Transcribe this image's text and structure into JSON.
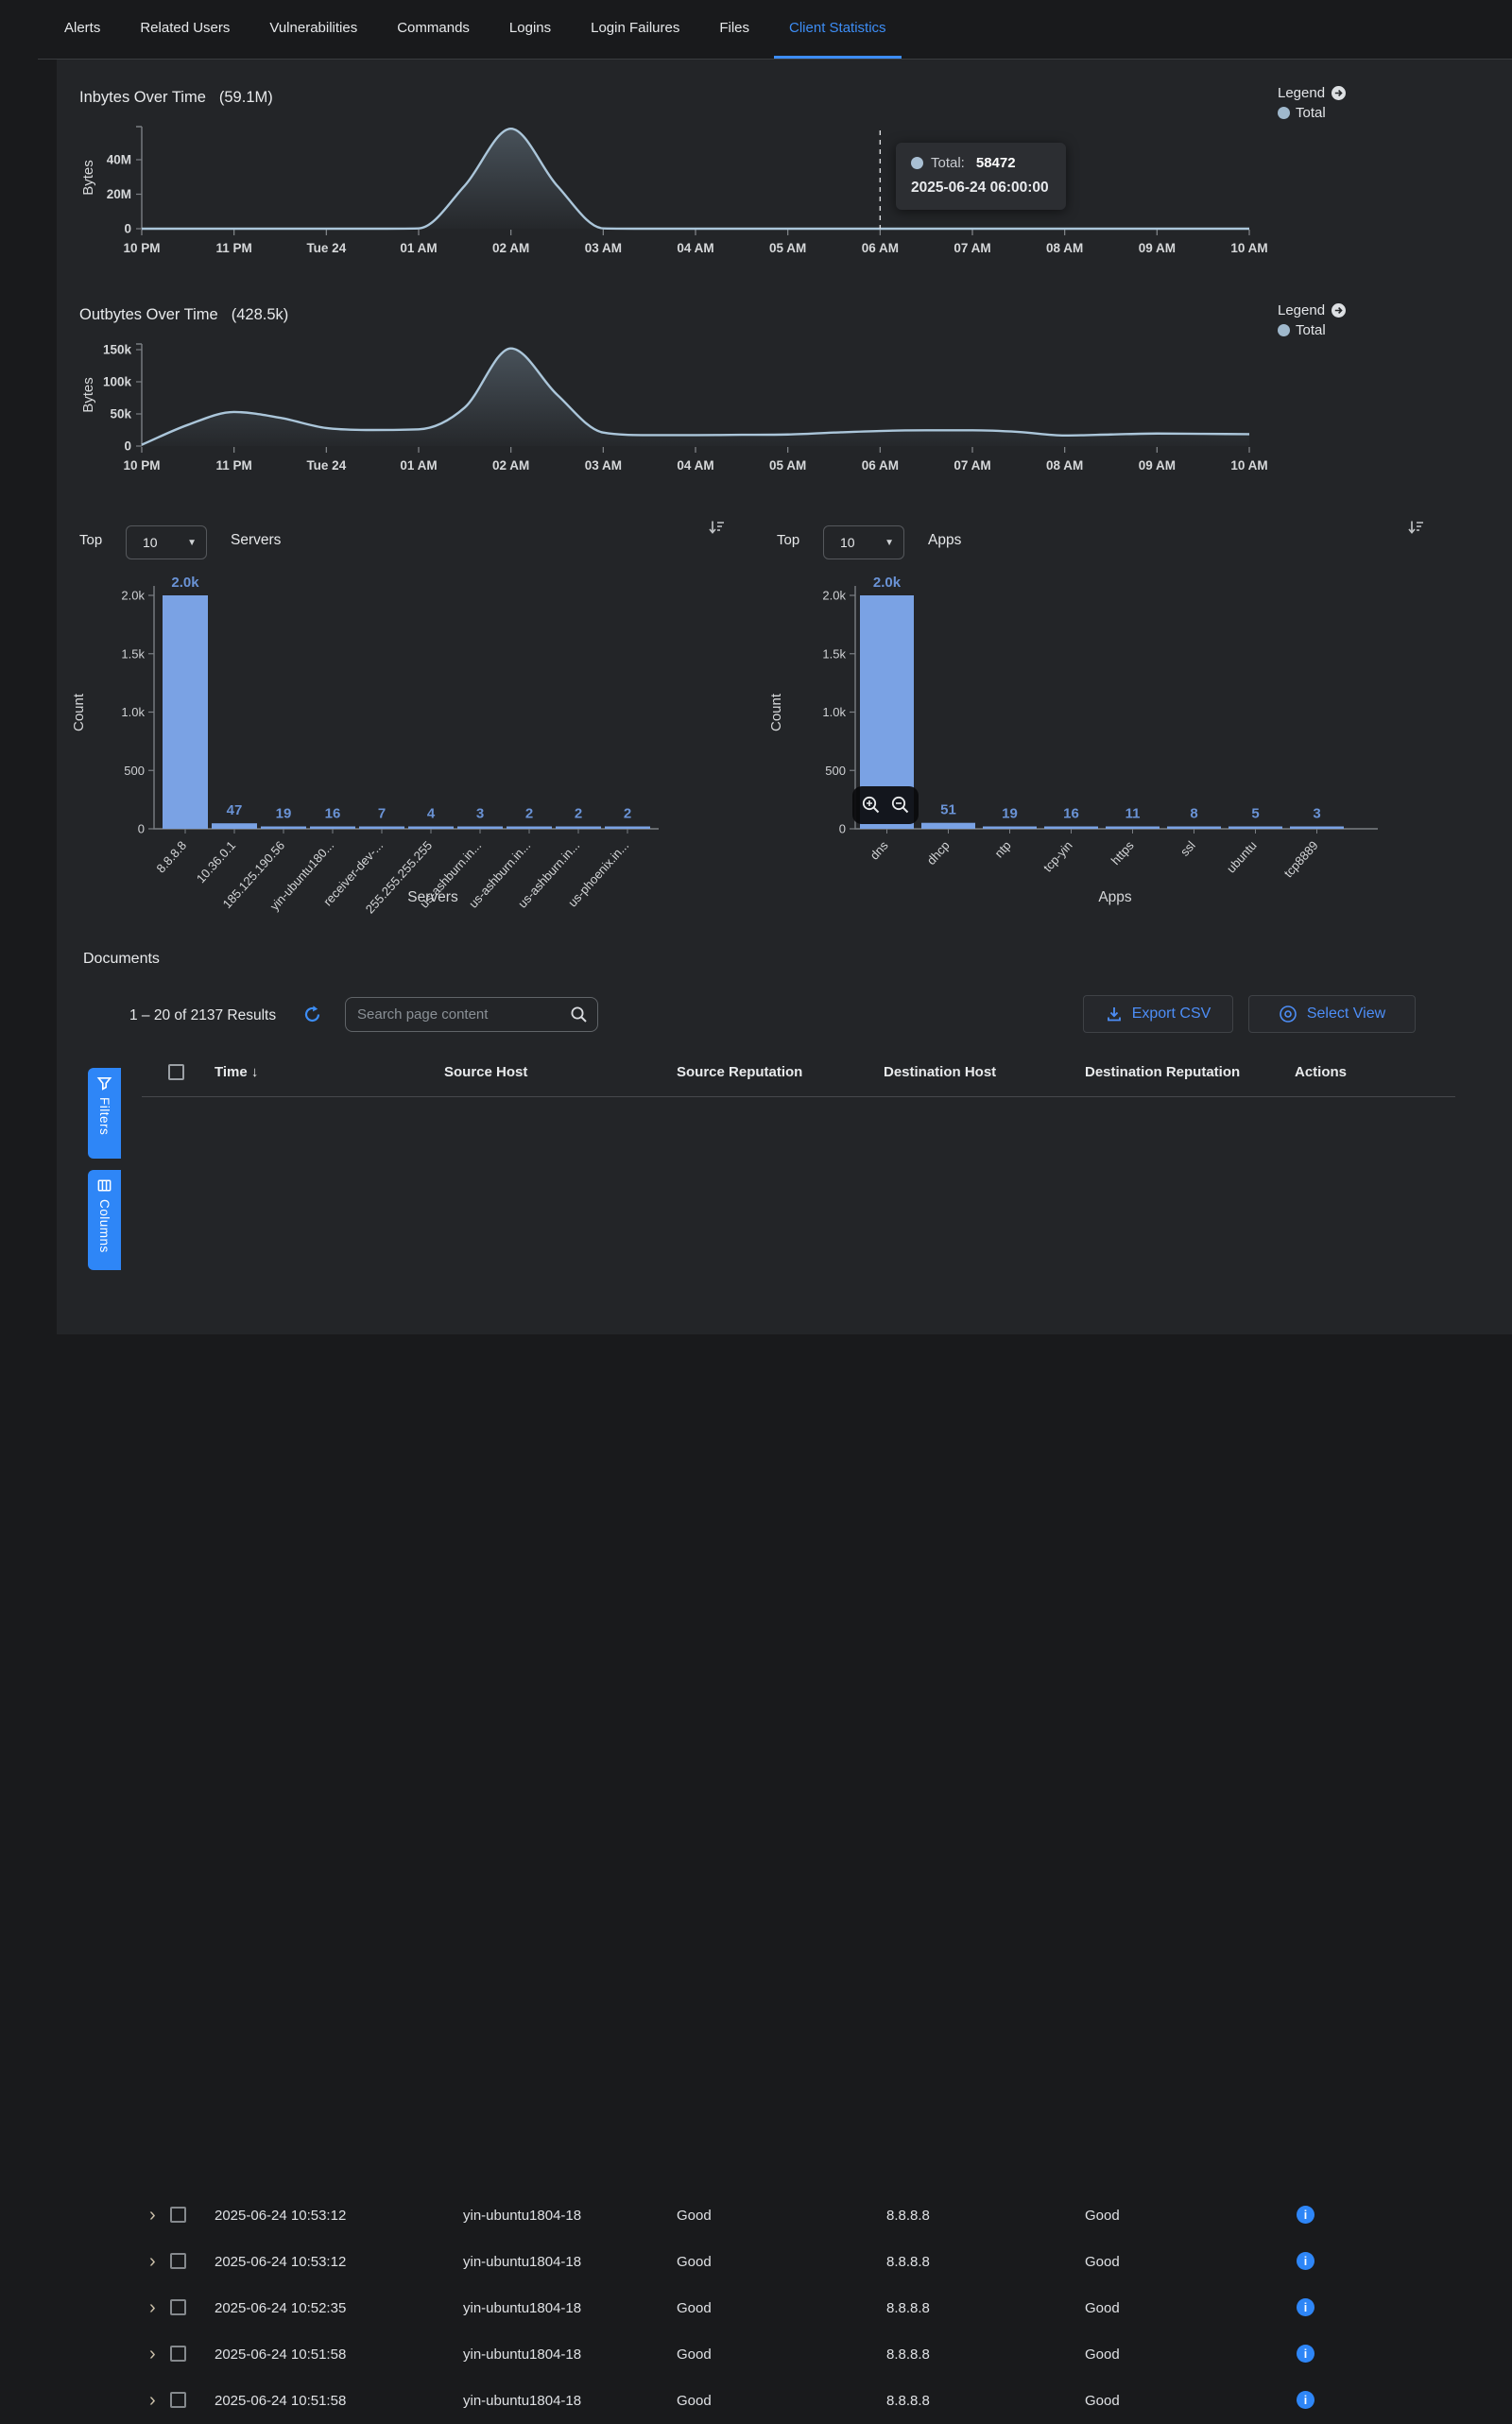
{
  "tabs": {
    "items": [
      {
        "label": "Alerts",
        "active": false
      },
      {
        "label": "Related Users",
        "active": false
      },
      {
        "label": "Vulnerabilities",
        "active": false
      },
      {
        "label": "Commands",
        "active": false
      },
      {
        "label": "Logins",
        "active": false
      },
      {
        "label": "Login Failures",
        "active": false
      },
      {
        "label": "Files",
        "active": false
      },
      {
        "label": "Client Statistics",
        "active": true
      }
    ]
  },
  "legend": {
    "label": "Legend",
    "series": "Total"
  },
  "chart_data": [
    {
      "id": "inbytes",
      "type": "area",
      "title": "Inbytes Over Time",
      "total": "(59.1M)",
      "ylabel": "Bytes",
      "unit": "M",
      "yticks": [
        {
          "v": 0,
          "l": "0"
        },
        {
          "v": 20,
          "l": "20M"
        },
        {
          "v": 40,
          "l": "40M"
        }
      ],
      "x_ticks": [
        "10 PM",
        "11 PM",
        "Tue 24",
        "01 AM",
        "02 AM",
        "03 AM",
        "04 AM",
        "05 AM",
        "06 AM",
        "07 AM",
        "08 AM",
        "09 AM",
        "10 AM"
      ],
      "step_minutes": 30,
      "values": [
        0,
        0,
        0,
        0,
        0,
        0,
        0.2,
        25,
        58,
        25,
        0.2,
        0,
        0,
        0,
        0,
        0,
        0,
        0,
        0,
        0,
        0,
        0,
        0,
        0,
        0
      ],
      "legend": "Total",
      "marker": {
        "index": 16,
        "series": "Total",
        "value": "58472",
        "time": "2025-06-24 06:00:00"
      }
    },
    {
      "id": "outbytes",
      "type": "area",
      "title": "Outbytes Over Time",
      "total": "(428.5k)",
      "ylabel": "Bytes",
      "unit": "k",
      "yticks": [
        {
          "v": 0,
          "l": "0"
        },
        {
          "v": 50,
          "l": "50k"
        },
        {
          "v": 100,
          "l": "100k"
        },
        {
          "v": 150,
          "l": "150k"
        }
      ],
      "x_ticks": [
        "10 PM",
        "11 PM",
        "Tue 24",
        "01 AM",
        "02 AM",
        "03 AM",
        "04 AM",
        "05 AM",
        "06 AM",
        "07 AM",
        "08 AM",
        "09 AM",
        "10 AM"
      ],
      "step_minutes": 30,
      "values": [
        2,
        33,
        53,
        44,
        28,
        25,
        26,
        60,
        152,
        80,
        21,
        17,
        17,
        17.5,
        18,
        21,
        23.5,
        24.5,
        24.5,
        22,
        16.5,
        18,
        19.5,
        19,
        18.5
      ],
      "legend": "Total"
    },
    {
      "id": "servers",
      "type": "bar",
      "header_prefix": "Top",
      "top_n": "10",
      "header_title": "Servers",
      "xlabel": "Servers",
      "ylabel": "Count",
      "ylim": [
        0,
        2000
      ],
      "yticks": [
        {
          "v": 0,
          "l": "0"
        },
        {
          "v": 500,
          "l": "500"
        },
        {
          "v": 1000,
          "l": "1.0k"
        },
        {
          "v": 1500,
          "l": "1.5k"
        },
        {
          "v": 2000,
          "l": "2.0k"
        }
      ],
      "categories": [
        "8.8.8.8",
        "10.36.0.1",
        "185.125.190.56",
        "yin-ubuntu180...",
        "receiver-dev-...",
        "255.255.255.255",
        "us-ashburn.in...",
        "us-ashburn.in...",
        "us-ashburn.in...",
        "us-phoenix.in..."
      ],
      "values": [
        2000,
        47,
        19,
        16,
        7,
        4,
        3,
        2,
        2,
        2
      ],
      "value_labels": [
        "2.0k",
        "47",
        "19",
        "16",
        "7",
        "4",
        "3",
        "2",
        "2",
        "2"
      ]
    },
    {
      "id": "apps",
      "type": "bar",
      "header_prefix": "Top",
      "top_n": "10",
      "header_title": "Apps",
      "xlabel": "Apps",
      "ylabel": "Count",
      "ylim": [
        0,
        2000
      ],
      "yticks": [
        {
          "v": 0,
          "l": "0"
        },
        {
          "v": 500,
          "l": "500"
        },
        {
          "v": 1000,
          "l": "1.0k"
        },
        {
          "v": 1500,
          "l": "1.5k"
        },
        {
          "v": 2000,
          "l": "2.0k"
        }
      ],
      "categories": [
        "dns",
        "dhcp",
        "ntp",
        "tcp-yin",
        "https",
        "ssl",
        "ubuntu",
        "tcp8889"
      ],
      "values": [
        2000,
        51,
        19,
        16,
        11,
        8,
        5,
        3
      ],
      "value_labels": [
        "2.0k",
        "51",
        "19",
        "16",
        "11",
        "8",
        "5",
        "3"
      ]
    }
  ],
  "documents": {
    "heading": "Documents",
    "results": "1 – 20 of 2137 Results",
    "search_placeholder": "Search page content",
    "export_csv": "Export CSV",
    "select_view": "Select View",
    "filters": "Filters",
    "columns": "Columns",
    "table": {
      "headers": [
        "Time",
        "Source Host",
        "Source Reputation",
        "Destination Host",
        "Destination Reputation",
        "Actions"
      ],
      "sorted_by": "Time",
      "rows": [
        {
          "time": "2025-06-24 10:53:12",
          "source_host": "yin-ubuntu1804-18",
          "source_rep": "Good",
          "dest_host": "8.8.8.8",
          "dest_rep": "Good"
        },
        {
          "time": "2025-06-24 10:53:12",
          "source_host": "yin-ubuntu1804-18",
          "source_rep": "Good",
          "dest_host": "8.8.8.8",
          "dest_rep": "Good"
        },
        {
          "time": "2025-06-24 10:52:35",
          "source_host": "yin-ubuntu1804-18",
          "source_rep": "Good",
          "dest_host": "8.8.8.8",
          "dest_rep": "Good"
        },
        {
          "time": "2025-06-24 10:51:58",
          "source_host": "yin-ubuntu1804-18",
          "source_rep": "Good",
          "dest_host": "8.8.8.8",
          "dest_rep": "Good"
        },
        {
          "time": "2025-06-24 10:51:58",
          "source_host": "yin-ubuntu1804-18",
          "source_rep": "Good",
          "dest_host": "8.8.8.8",
          "dest_rep": "Good"
        }
      ]
    }
  },
  "colors": {
    "accent_blue": "#2e86f7",
    "bar_fill": "#7aa2e4",
    "bar_label": "#6a93d6",
    "area_line": "#abc6da",
    "legend_dot": "#9fb8cc"
  }
}
